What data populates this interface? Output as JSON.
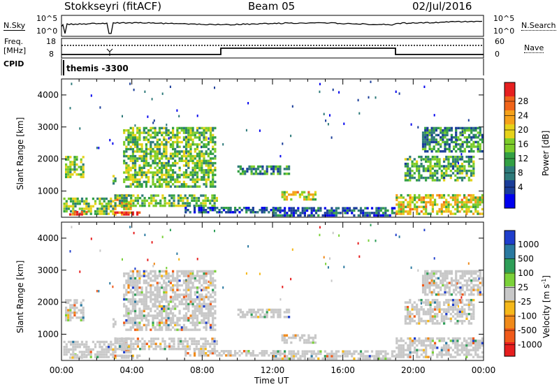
{
  "header": {
    "radar": "Stokkseyri (fitACF)",
    "beam": "Beam 05",
    "date": "02/Jul/2016"
  },
  "top_panels": {
    "nsky_label": "N.Sky",
    "nsearch_label": "N.Search",
    "nsky_ticks": [
      "10^5",
      "10^0"
    ],
    "nsearch_ticks": [
      "10^5",
      "10^0"
    ],
    "freq_label": "Freq.",
    "freq_unit": "[MHz]",
    "freq_ticks": [
      "18",
      "8"
    ],
    "nave_ticks": [
      "60",
      "0"
    ],
    "nave_label": "Nave",
    "cpid_label": "CPID",
    "cpid_text": "themis -3300"
  },
  "chart_data": [
    {
      "type": "heatmap",
      "title": "",
      "xlabel": "Time UT",
      "ylabel": "Slant Range [km]",
      "x_ticks": [
        "00:00",
        "04:00",
        "08:00",
        "12:00",
        "16:00",
        "20:00",
        "00:00"
      ],
      "xlim_hours": [
        0,
        24
      ],
      "y_ticks": [
        1000,
        2000,
        3000,
        4000
      ],
      "ylim": [
        180,
        4500
      ],
      "colorbar_label": "Power [dB]",
      "colorbar_ticks": [
        4,
        8,
        12,
        16,
        20,
        24,
        28
      ],
      "colorbar_range": [
        0,
        30
      ],
      "colors": [
        "#0000ee",
        "#1a3d99",
        "#2e7a7a",
        "#33a044",
        "#7ccc2a",
        "#e6d21a",
        "#f5a11a",
        "#f0641a",
        "#e62020"
      ],
      "echo_regions": [
        {
          "t": [
            0.1,
            3.0
          ],
          "r": [
            250,
            800
          ],
          "v": 14
        },
        {
          "t": [
            0.3,
            1.5
          ],
          "r": [
            230,
            380
          ],
          "v": 26
        },
        {
          "t": [
            3.0,
            4.5
          ],
          "r": [
            230,
            350
          ],
          "v": 26
        },
        {
          "t": [
            3.0,
            4.0
          ],
          "r": [
            400,
            900
          ],
          "v": 20
        },
        {
          "t": [
            3.0,
            8.9
          ],
          "r": [
            500,
            900
          ],
          "v": 14
        },
        {
          "t": [
            0.2,
            1.3
          ],
          "r": [
            1400,
            2100
          ],
          "v": 14
        },
        {
          "t": [
            2.9,
            3.1
          ],
          "r": [
            1200,
            1500
          ],
          "v": 12
        },
        {
          "t": [
            3.5,
            8.8
          ],
          "r": [
            1100,
            3000
          ],
          "v": 14
        },
        {
          "t": [
            7.0,
            12.5
          ],
          "r": [
            300,
            500
          ],
          "v": 6
        },
        {
          "t": [
            10.0,
            13.0
          ],
          "r": [
            1500,
            1800
          ],
          "v": 10
        },
        {
          "t": [
            12.5,
            14.5
          ],
          "r": [
            700,
            1000
          ],
          "v": 18
        },
        {
          "t": [
            12.0,
            19.0
          ],
          "r": [
            200,
            500
          ],
          "v": 6
        },
        {
          "t": [
            19.0,
            24.0
          ],
          "r": [
            250,
            900
          ],
          "v": 18
        },
        {
          "t": [
            19.5,
            23.5
          ],
          "r": [
            1300,
            2100
          ],
          "v": 12
        },
        {
          "t": [
            20.5,
            24.0
          ],
          "r": [
            2200,
            3000
          ],
          "v": 10
        }
      ]
    },
    {
      "type": "heatmap",
      "title": "",
      "xlabel": "Time UT",
      "ylabel": "Slant Range [km]",
      "x_ticks": [
        "00:00",
        "04:00",
        "08:00",
        "12:00",
        "16:00",
        "20:00",
        "00:00"
      ],
      "xlim_hours": [
        0,
        24
      ],
      "y_ticks": [
        1000,
        2000,
        3000,
        4000
      ],
      "ylim": [
        180,
        4500
      ],
      "colorbar_label": "Velocity [m s^-1]",
      "colorbar_ticks": [
        "1000",
        "500",
        "100",
        "25",
        "-25",
        "-100",
        "-500",
        "-1000"
      ],
      "colors": [
        "#1f3ecc",
        "#2a79a0",
        "#2e9e58",
        "#7bd13a",
        "#c8c8c8",
        "#f5b81a",
        "#f08a1a",
        "#f05a1a",
        "#e61e1e"
      ],
      "dominant_value": "ground scatter (grey, ±25 m/s)"
    }
  ]
}
